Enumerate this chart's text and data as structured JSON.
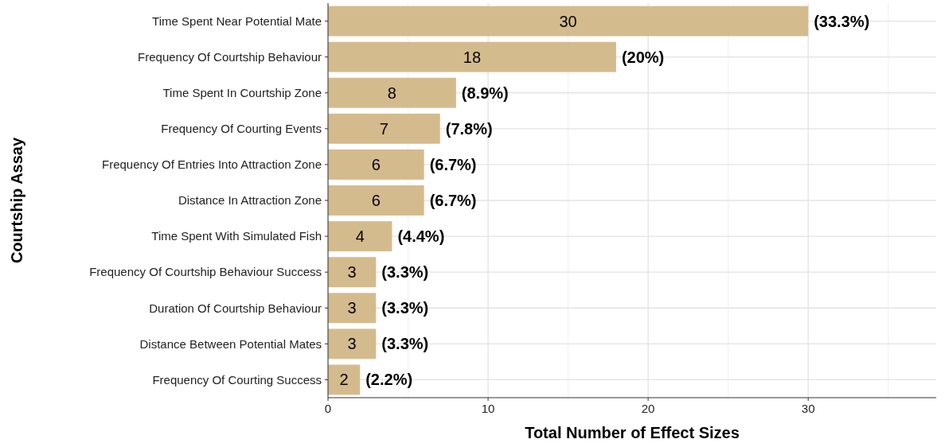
{
  "chart_data": {
    "type": "bar",
    "orientation": "horizontal",
    "xlabel": "Total Number of Effect Sizes",
    "ylabel": "Courtship Assay",
    "categories": [
      "Time Spent Near Potential Mate",
      "Frequency Of Courtship Behaviour",
      "Time Spent In Courtship Zone",
      "Frequency Of Courting Events",
      "Frequency Of Entries Into Attraction Zone",
      "Distance In Attraction Zone",
      "Time Spent With Simulated Fish",
      "Frequency Of Courtship Behaviour Success",
      "Duration Of Courtship Behaviour",
      "Distance Between Potential Mates",
      "Frequency Of Courting Success"
    ],
    "values": [
      30,
      18,
      8,
      7,
      6,
      6,
      4,
      3,
      3,
      3,
      2
    ],
    "annotations": [
      {
        "text": "(33.3%)",
        "x": 30,
        "y": "Time Spent Near Potential Mate"
      },
      {
        "text": "(20%)",
        "x": 18,
        "y": "Frequency Of Courtship Behaviour"
      },
      {
        "text": "(8.9%)",
        "x": 8,
        "y": "Time Spent In Courtship Zone"
      },
      {
        "text": "(7.8%)",
        "x": 7,
        "y": "Frequency Of Courting Events"
      },
      {
        "text": "(6.7%)",
        "x": 6,
        "y": "Frequency Of Entries Into Attraction Zone"
      },
      {
        "text": "(6.7%)",
        "x": 6,
        "y": "Distance In Attraction Zone"
      },
      {
        "text": "(4.4%)",
        "x": 4,
        "y": "Time Spent With Simulated Fish"
      },
      {
        "text": "(3.3%)",
        "x": 3,
        "y": "Frequency Of Courtship Behaviour Success"
      },
      {
        "text": "(3.3%)",
        "x": 3,
        "y": "Duration Of Courtship Behaviour"
      },
      {
        "text": "(3.3%)",
        "x": 3,
        "y": "Distance Between Potential Mates"
      },
      {
        "text": "(2.2%)",
        "x": 2,
        "y": "Frequency Of Courting Success"
      }
    ],
    "data_labels": true,
    "color": "#d4bb8e",
    "xlim": [
      0,
      38
    ],
    "xticks": [
      0,
      10,
      20,
      30
    ],
    "grid": true
  }
}
